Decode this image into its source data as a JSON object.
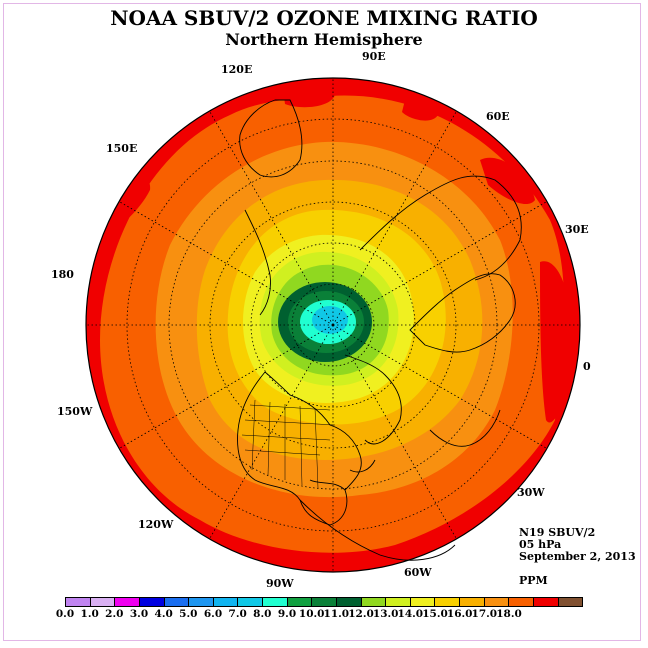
{
  "title": "NOAA SBUV/2 OZONE MIXING RATIO",
  "subtitle": "Northern Hemisphere",
  "longitude_labels": [
    {
      "text": "90E",
      "id": "lon-90e"
    },
    {
      "text": "60E",
      "id": "lon-60e"
    },
    {
      "text": "30E",
      "id": "lon-30e"
    },
    {
      "text": "0",
      "id": "lon-0"
    },
    {
      "text": "30W",
      "id": "lon-30w"
    },
    {
      "text": "60W",
      "id": "lon-60w"
    },
    {
      "text": "90W",
      "id": "lon-90w"
    },
    {
      "text": "120W",
      "id": "lon-120w"
    },
    {
      "text": "150W",
      "id": "lon-150w"
    },
    {
      "text": "180",
      "id": "lon-180"
    },
    {
      "text": "150E",
      "id": "lon-150e"
    },
    {
      "text": "120E",
      "id": "lon-120e"
    }
  ],
  "info": {
    "satellite": "N19 SBUV/2",
    "pressure": "05 hPa",
    "date": "September 2, 2013",
    "units": "PPM"
  },
  "colorbar": {
    "colors": [
      "#c084f0",
      "#d9b0f2",
      "#f000f0",
      "#0000e0",
      "#1a6ef0",
      "#1e96f0",
      "#10b4f0",
      "#10c8e6",
      "#20ffd0",
      "#10a040",
      "#0a8038",
      "#006030",
      "#90d820",
      "#d0f020",
      "#f0f020",
      "#f8d000",
      "#f8b000",
      "#f89010",
      "#f86000",
      "#f00000",
      "#805030"
    ],
    "ticks": [
      "0.0",
      "1.0",
      "2.0",
      "3.0",
      "4.0",
      "5.0",
      "6.0",
      "7.0",
      "8.0",
      "9.0",
      "10.0",
      "11.0",
      "12.0",
      "13.0",
      "14.0",
      "15.0",
      "16.0",
      "17.0",
      "18.0"
    ]
  }
}
